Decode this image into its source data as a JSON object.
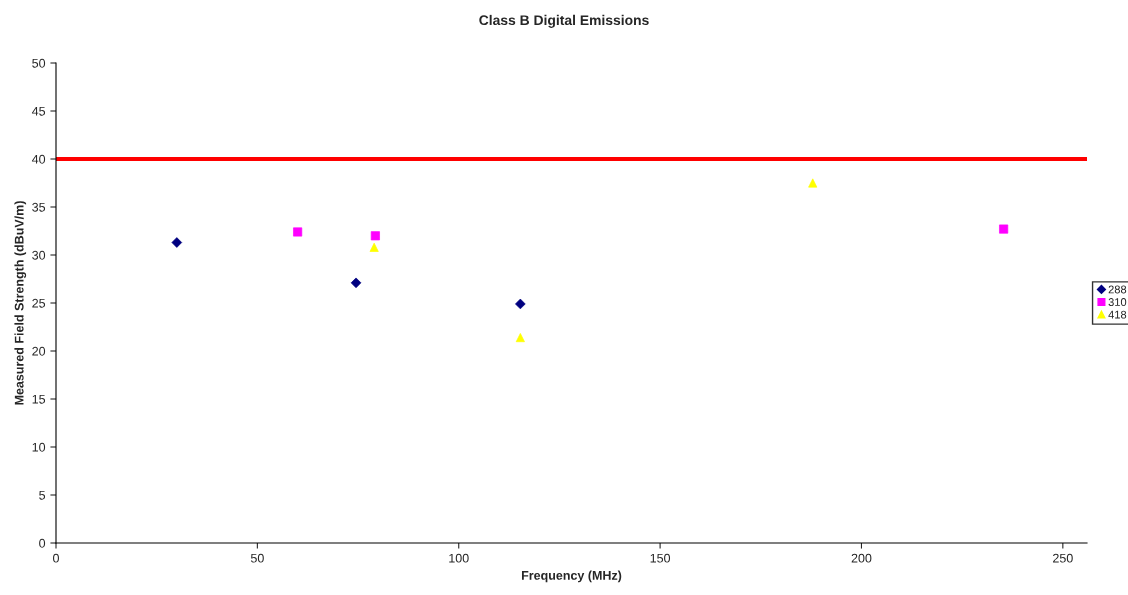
{
  "chart_data": {
    "type": "scatter",
    "title": "Class B Digital Emissions",
    "xlabel": "Frequency (MHz)",
    "ylabel": "Measured Field Strength (dBuV/m)",
    "xlim": [
      0,
      256
    ],
    "xticks": [
      0,
      50,
      100,
      150,
      200,
      250
    ],
    "ylim": [
      0,
      50
    ],
    "yticks": [
      0,
      5,
      10,
      15,
      20,
      25,
      30,
      35,
      40,
      45,
      50
    ],
    "grid": false,
    "legend": "right",
    "series": [
      {
        "name": "288",
        "color": "#000080",
        "marker": "diamond",
        "x": [
          30,
          74.5,
          115.3
        ],
        "values": [
          31.3,
          27.1,
          24.9
        ]
      },
      {
        "name": "310",
        "color": "#ff00ff",
        "marker": "square",
        "x": [
          60,
          79.3,
          235.3
        ],
        "values": [
          32.4,
          32.0,
          32.7
        ]
      },
      {
        "name": "418",
        "color": "#ffff00",
        "marker": "triangle",
        "x": [
          79.0,
          115.3,
          187.9
        ],
        "values": [
          30.8,
          21.4,
          37.5
        ]
      }
    ],
    "ref_lines": [
      {
        "axis": "y",
        "value": 40,
        "color": "#ff0000"
      }
    ]
  }
}
